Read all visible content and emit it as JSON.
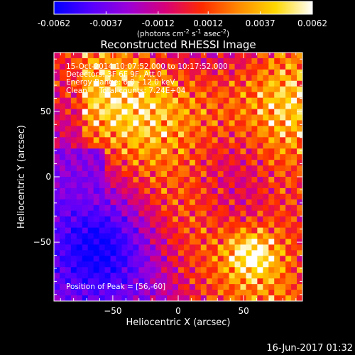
{
  "chart_data": {
    "type": "heatmap",
    "title": "Reconstructed RHESSI Image",
    "xlabel": "Heliocentric X (arcsec)",
    "ylabel": "Heliocentric Y (arcsec)",
    "xlim": [
      -95,
      95
    ],
    "ylim": [
      -95,
      95
    ],
    "x_ticks": [
      -50,
      0,
      50
    ],
    "y_ticks": [
      -50,
      0,
      50
    ],
    "colorbar": {
      "range": [
        -0.0062,
        0.0062
      ],
      "tick_values": [
        -0.0062,
        -0.0037,
        -0.0012,
        0.0012,
        0.0037,
        0.0062
      ],
      "tick_labels": [
        "-0.0062",
        "-0.0037",
        "-0.0012",
        "0.0012",
        "0.0037",
        "0.0062"
      ],
      "unit_label_main": "(photons cm",
      "unit_sup1": "-2",
      "unit_mid": " s",
      "unit_sup2": "-1",
      "unit_mid2": " asec",
      "unit_sup3": "-2",
      "unit_end": ")"
    },
    "info_lines": [
      "15-Oct-2014 10:07:52.000 to 10:17:52.000",
      "Detectors: 3F 6F 9F, Att 0",
      "Energy Range: 6.0 - 12.0 keV",
      "Clean     Total counts: 7.24E+04"
    ],
    "peak": {
      "label": "Position of Peak = [56,-60]",
      "x": 56,
      "y": -60
    },
    "grid": false,
    "colormap": [
      "#0000ff",
      "#5500ff",
      "#9a00d8",
      "#d7007a",
      "#ff2a00",
      "#ff8a00",
      "#ffd800",
      "#ffffff"
    ]
  },
  "footer": {
    "date": "16-Jun-2017 01:32"
  }
}
